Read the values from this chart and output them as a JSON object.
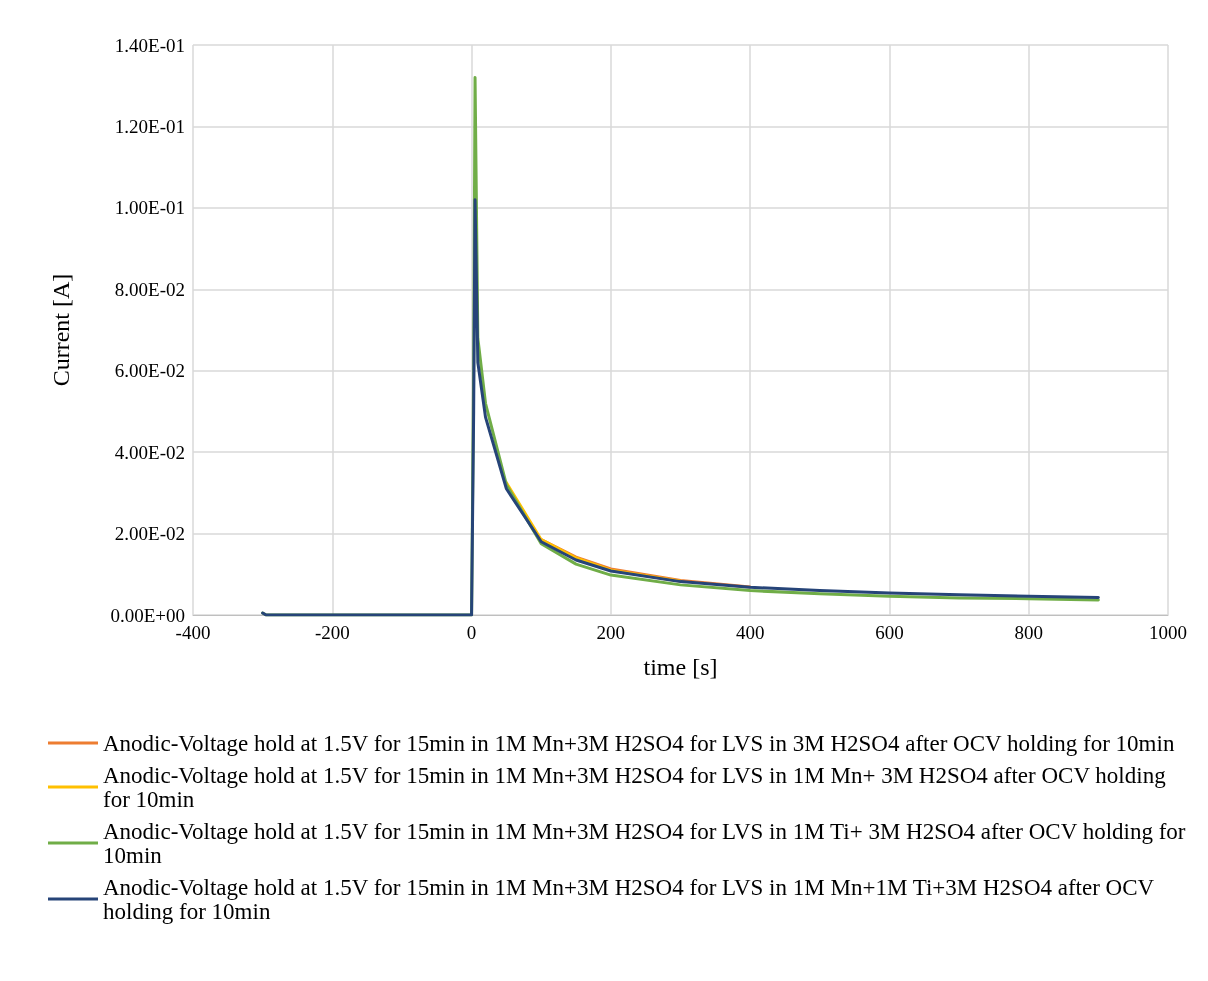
{
  "chart_data": {
    "type": "line",
    "xlabel": "time [s]",
    "ylabel": "Current [A]",
    "xlim": [
      -400,
      1000
    ],
    "xticks": [
      -400,
      -200,
      0,
      200,
      400,
      600,
      800,
      1000
    ],
    "ylim": [
      0,
      0.14
    ],
    "yticks": [
      {
        "value": 0,
        "label": "0.00E+00"
      },
      {
        "value": 0.02,
        "label": "2.00E-02"
      },
      {
        "value": 0.04,
        "label": "4.00E-02"
      },
      {
        "value": 0.06,
        "label": "6.00E-02"
      },
      {
        "value": 0.08,
        "label": "8.00E-02"
      },
      {
        "value": 0.1,
        "label": "1.00E-01"
      },
      {
        "value": 0.12,
        "label": "1.20E-01"
      },
      {
        "value": 0.14,
        "label": "1.40E-01"
      }
    ],
    "grid": true,
    "legend": "bottom",
    "marker": "none",
    "line_style": "solid",
    "x": [
      -300,
      -295,
      0,
      3,
      5,
      9,
      20,
      50,
      100,
      150,
      200,
      300,
      400,
      500,
      600,
      700,
      800,
      900
    ],
    "series": [
      {
        "name": "Anodic-Voltage hold at 1.5V for 15min in 1M Mn+3M H2SO4 for LVS in 3M H2SO4 after OCV holding for 10min",
        "color": "#ed7d31",
        "values": [
          null,
          null,
          null,
          null,
          null,
          null,
          null,
          null,
          0.0185,
          0.0142,
          0.0113,
          0.0085,
          0.0069,
          null,
          null,
          null,
          null,
          null
        ]
      },
      {
        "name": "Anodic-Voltage hold at 1.5V for 15min in 1M Mn+3M H2SO4 for LVS in 1M Mn+ 3M H2SO4 after OCV holding for 10min",
        "color": "#ffc000",
        "values": [
          null,
          null,
          null,
          null,
          null,
          null,
          null,
          0.0325,
          0.0185,
          0.014,
          0.011,
          0.0083,
          null,
          null,
          null,
          null,
          null,
          null
        ]
      },
      {
        "name": "Anodic-Voltage hold at 1.5V for 15min in 1M Mn+3M H2SO4 for LVS in 1M Ti+ 3M H2SO4 after OCV holding for 10min",
        "color": "#70ad47",
        "values": [
          0.0005,
          0,
          0,
          0.06,
          0.132,
          0.068,
          0.052,
          0.032,
          0.0175,
          0.0125,
          0.0098,
          0.0074,
          0.006,
          0.0052,
          0.0046,
          0.0042,
          0.004,
          0.0037
        ]
      },
      {
        "name": "Anodic-Voltage hold at 1.5V for 15min in 1M Mn+3M H2SO4 for LVS in 1M Mn+1M Ti+3M H2SO4 after OCV holding for 10min",
        "color": "#264478",
        "values": [
          0.0005,
          0,
          0,
          0.05,
          0.102,
          0.062,
          0.0486,
          0.031,
          0.018,
          0.0135,
          0.0108,
          0.0082,
          0.0068,
          0.006,
          0.0054,
          0.005,
          0.0046,
          0.0043
        ]
      }
    ]
  }
}
